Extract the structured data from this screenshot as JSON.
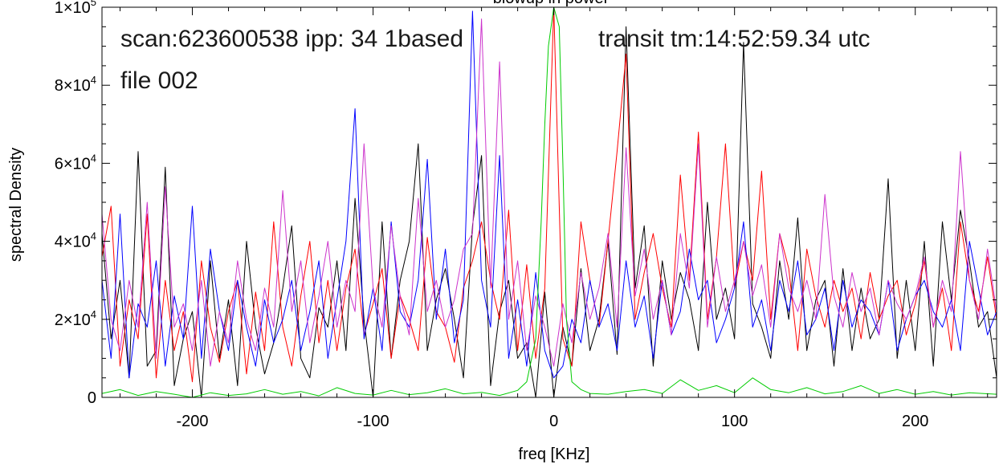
{
  "chart_data": {
    "type": "line",
    "title": "blowup in power",
    "xlabel": "freq [KHz]",
    "ylabel": "spectral Density",
    "xlim": [
      -250,
      245
    ],
    "ylim": [
      0,
      100000
    ],
    "x_ticks": [
      {
        "value": -200,
        "label": "-200"
      },
      {
        "value": -100,
        "label": "-100"
      },
      {
        "value": 0,
        "label": "0"
      },
      {
        "value": 100,
        "label": "100"
      },
      {
        "value": 200,
        "label": "200"
      }
    ],
    "y_ticks": [
      {
        "value": 0,
        "mantissa": "0",
        "exp": ""
      },
      {
        "value": 20000,
        "mantissa": "2×10",
        "exp": "4"
      },
      {
        "value": 40000,
        "mantissa": "4×10",
        "exp": "4"
      },
      {
        "value": 60000,
        "mantissa": "6×10",
        "exp": "4"
      },
      {
        "value": 80000,
        "mantissa": "8×10",
        "exp": "4"
      },
      {
        "value": 100000,
        "mantissa": "1×10",
        "exp": "5"
      }
    ],
    "grid": false,
    "annotations": [
      "scan:623600538 ipp:  34 1based",
      "transit tm:14:52:59.34 utc",
      "file 002"
    ],
    "series": [
      {
        "color": "#000000",
        "x": [
          -250,
          -245,
          -240,
          -235,
          -230,
          -225,
          -220,
          -215,
          -210,
          -205,
          -200,
          -195,
          -190,
          -185,
          -180,
          -175,
          -170,
          -165,
          -160,
          -155,
          -150,
          -145,
          -140,
          -135,
          -130,
          -125,
          -120,
          -115,
          -110,
          -105,
          -100,
          -95,
          -90,
          -85,
          -80,
          -75,
          -70,
          -65,
          -60,
          -55,
          -50,
          -45,
          -40,
          -35,
          -30,
          -25,
          -20,
          -15,
          -10,
          -5,
          0,
          5,
          10,
          15,
          20,
          25,
          30,
          35,
          40,
          45,
          50,
          55,
          60,
          65,
          70,
          75,
          80,
          85,
          90,
          95,
          100,
          105,
          110,
          115,
          120,
          125,
          130,
          135,
          140,
          145,
          150,
          155,
          160,
          165,
          170,
          175,
          180,
          185,
          190,
          195,
          200,
          205,
          210,
          215,
          220,
          225,
          230,
          235,
          240,
          245
        ],
        "y": [
          42000,
          15000,
          30000,
          5000,
          63000,
          8000,
          12000,
          59000,
          3000,
          15000,
          22000,
          0,
          35000,
          10000,
          25000,
          3000,
          40000,
          18000,
          6000,
          14000,
          28000,
          44000,
          10000,
          5000,
          23000,
          18000,
          35000,
          12000,
          51000,
          20000,
          0,
          45000,
          10000,
          30000,
          40000,
          65000,
          12000,
          25000,
          33000,
          20000,
          5000,
          44000,
          62000,
          3000,
          22000,
          30000,
          10000,
          14000,
          0,
          27000,
          0,
          18000,
          8000,
          33000,
          12000,
          20000,
          40000,
          11000,
          95000,
          28000,
          44000,
          8000,
          35000,
          20000,
          32000,
          25000,
          12000,
          50000,
          20000,
          28000,
          15000,
          91000,
          24000,
          18000,
          10000,
          35000,
          20000,
          46000,
          12000,
          25000,
          30000,
          8000,
          33000,
          12000,
          28000,
          15000,
          20000,
          56000,
          10000,
          30000,
          12000,
          40000,
          8000,
          45000,
          25000,
          48000,
          35000,
          18000,
          22000,
          5000
        ]
      },
      {
        "color": "#ff0000",
        "x": [
          -250,
          -245,
          -240,
          -235,
          -230,
          -225,
          -220,
          -215,
          -210,
          -205,
          -200,
          -195,
          -190,
          -185,
          -180,
          -175,
          -170,
          -165,
          -160,
          -155,
          -150,
          -145,
          -140,
          -135,
          -130,
          -125,
          -120,
          -115,
          -110,
          -105,
          -100,
          -95,
          -90,
          -85,
          -80,
          -75,
          -70,
          -65,
          -60,
          -55,
          -50,
          -45,
          -40,
          -35,
          -30,
          -25,
          -20,
          -15,
          -10,
          -5,
          0,
          5,
          10,
          15,
          20,
          25,
          30,
          35,
          40,
          45,
          50,
          55,
          60,
          65,
          70,
          75,
          80,
          85,
          90,
          95,
          100,
          105,
          110,
          115,
          120,
          125,
          130,
          135,
          140,
          145,
          150,
          155,
          160,
          165,
          170,
          175,
          180,
          185,
          190,
          195,
          200,
          205,
          210,
          215,
          220,
          225,
          230,
          235,
          240,
          245
        ],
        "y": [
          36000,
          49000,
          8000,
          25000,
          15000,
          47000,
          5000,
          30000,
          12000,
          22000,
          4000,
          35000,
          18000,
          9000,
          22000,
          30000,
          6000,
          27000,
          12000,
          45000,
          18000,
          8000,
          26000,
          40000,
          14000,
          30000,
          12000,
          28000,
          38000,
          16000,
          24000,
          33000,
          10000,
          26000,
          20000,
          12000,
          41000,
          22000,
          18000,
          9000,
          28000,
          35000,
          45000,
          30000,
          20000,
          48000,
          12000,
          34000,
          10000,
          28000,
          100000,
          15000,
          8000,
          45000,
          30000,
          18000,
          40000,
          63000,
          88000,
          20000,
          32000,
          42000,
          28000,
          18000,
          57000,
          30000,
          68000,
          20000,
          36000,
          65000,
          28000,
          40000,
          30000,
          58000,
          20000,
          42000,
          33000,
          12000,
          38000,
          26000,
          18000,
          30000,
          22000,
          28000,
          15000,
          32000,
          20000,
          26000,
          30000,
          16000,
          24000,
          35000,
          18000,
          28000,
          12000,
          45000,
          30000,
          22000,
          36000,
          20000
        ]
      },
      {
        "color": "#0000ff",
        "x": [
          -250,
          -245,
          -240,
          -235,
          -230,
          -225,
          -220,
          -215,
          -210,
          -205,
          -200,
          -195,
          -190,
          -185,
          -180,
          -175,
          -170,
          -165,
          -160,
          -155,
          -150,
          -145,
          -140,
          -135,
          -130,
          -125,
          -120,
          -115,
          -110,
          -105,
          -100,
          -95,
          -90,
          -85,
          -80,
          -75,
          -70,
          -65,
          -60,
          -55,
          -50,
          -45,
          -40,
          -35,
          -30,
          -25,
          -20,
          -15,
          -10,
          -5,
          0,
          5,
          10,
          15,
          20,
          25,
          30,
          35,
          40,
          45,
          50,
          55,
          60,
          65,
          70,
          75,
          80,
          85,
          90,
          95,
          100,
          105,
          110,
          115,
          120,
          125,
          130,
          135,
          140,
          145,
          150,
          155,
          160,
          165,
          170,
          175,
          180,
          185,
          190,
          195,
          200,
          205,
          210,
          215,
          220,
          225,
          230,
          235,
          240,
          245
        ],
        "y": [
          30000,
          10000,
          47000,
          5000,
          24000,
          18000,
          35000,
          8000,
          26000,
          15000,
          49000,
          10000,
          38000,
          22000,
          12000,
          30000,
          18000,
          8000,
          25000,
          14000,
          20000,
          30000,
          12000,
          22000,
          35000,
          10000,
          25000,
          40000,
          74000,
          15000,
          28000,
          12000,
          45000,
          22000,
          18000,
          30000,
          61000,
          20000,
          38000,
          14000,
          25000,
          99000,
          30000,
          18000,
          62000,
          10000,
          25000,
          8000,
          32000,
          12000,
          5000,
          8000,
          20000,
          14000,
          30000,
          18000,
          24000,
          12000,
          35000,
          18000,
          26000,
          10000,
          30000,
          16000,
          22000,
          38000,
          25000,
          30000,
          14000,
          20000,
          28000,
          45000,
          18000,
          25000,
          12000,
          30000,
          22000,
          35000,
          16000,
          20000,
          28000,
          12000,
          30000,
          18000,
          25000,
          22000,
          16000,
          30000,
          12000,
          20000,
          26000,
          30000,
          22000,
          18000,
          25000,
          12000,
          40000,
          28000,
          16000,
          22000
        ]
      },
      {
        "color": "#cc33cc",
        "x": [
          -250,
          -245,
          -240,
          -235,
          -230,
          -225,
          -220,
          -215,
          -210,
          -205,
          -200,
          -195,
          -190,
          -185,
          -180,
          -175,
          -170,
          -165,
          -160,
          -155,
          -150,
          -145,
          -140,
          -135,
          -130,
          -125,
          -120,
          -115,
          -110,
          -105,
          -100,
          -95,
          -90,
          -85,
          -80,
          -75,
          -70,
          -65,
          -60,
          -55,
          -50,
          -45,
          -40,
          -35,
          -30,
          -25,
          -20,
          -15,
          -10,
          -5,
          0,
          5,
          10,
          15,
          20,
          25,
          30,
          35,
          40,
          45,
          50,
          55,
          60,
          65,
          70,
          75,
          80,
          85,
          90,
          95,
          100,
          105,
          110,
          115,
          120,
          125,
          130,
          135,
          140,
          145,
          150,
          155,
          160,
          165,
          170,
          175,
          180,
          185,
          190,
          195,
          200,
          205,
          210,
          215,
          220,
          225,
          230,
          235,
          240,
          245
        ],
        "y": [
          47000,
          20000,
          12000,
          30000,
          18000,
          50000,
          10000,
          54000,
          18000,
          24000,
          12000,
          30000,
          8000,
          22000,
          14000,
          35000,
          20000,
          12000,
          28000,
          18000,
          53000,
          22000,
          35000,
          14000,
          26000,
          40000,
          18000,
          30000,
          22000,
          65000,
          28000,
          18000,
          44000,
          26000,
          16000,
          51000,
          22000,
          30000,
          18000,
          25000,
          38000,
          42000,
          97000,
          28000,
          86000,
          20000,
          35000,
          12000,
          26000,
          18000,
          8000,
          24000,
          14000,
          32000,
          20000,
          28000,
          42000,
          18000,
          64000,
          26000,
          38000,
          20000,
          30000,
          16000,
          42000,
          28000,
          65000,
          18000,
          36000,
          22000,
          30000,
          40000,
          26000,
          34000,
          18000,
          42000,
          28000,
          22000,
          30000,
          20000,
          52000,
          26000,
          18000,
          32000,
          22000,
          28000,
          16000,
          30000,
          24000,
          20000,
          26000,
          36000,
          18000,
          30000,
          22000,
          63000,
          30000,
          20000,
          38000,
          22000
        ]
      },
      {
        "color": "#00cc00",
        "x": [
          -250,
          -240,
          -230,
          -220,
          -210,
          -200,
          -190,
          -180,
          -170,
          -160,
          -150,
          -140,
          -130,
          -120,
          -110,
          -100,
          -90,
          -80,
          -70,
          -60,
          -50,
          -40,
          -30,
          -20,
          -15,
          -10,
          -7,
          -5,
          -3,
          0,
          3,
          5,
          7,
          10,
          15,
          20,
          30,
          40,
          50,
          60,
          70,
          80,
          90,
          100,
          110,
          120,
          130,
          140,
          150,
          160,
          170,
          180,
          190,
          200,
          210,
          220,
          230,
          245
        ],
        "y": [
          1000,
          2000,
          500,
          1500,
          800,
          0,
          1200,
          500,
          900,
          2000,
          800,
          1500,
          400,
          2500,
          1000,
          600,
          1800,
          700,
          1200,
          2200,
          900,
          1300,
          500,
          1800,
          4000,
          15000,
          45000,
          70000,
          90000,
          100000,
          95000,
          60000,
          20000,
          4000,
          2000,
          1000,
          800,
          1500,
          2000,
          1000,
          4500,
          1800,
          3000,
          1200,
          5000,
          2000,
          1200,
          2500,
          900,
          1500,
          3000,
          1000,
          2000,
          800,
          1500,
          600,
          1200,
          800
        ]
      }
    ]
  }
}
